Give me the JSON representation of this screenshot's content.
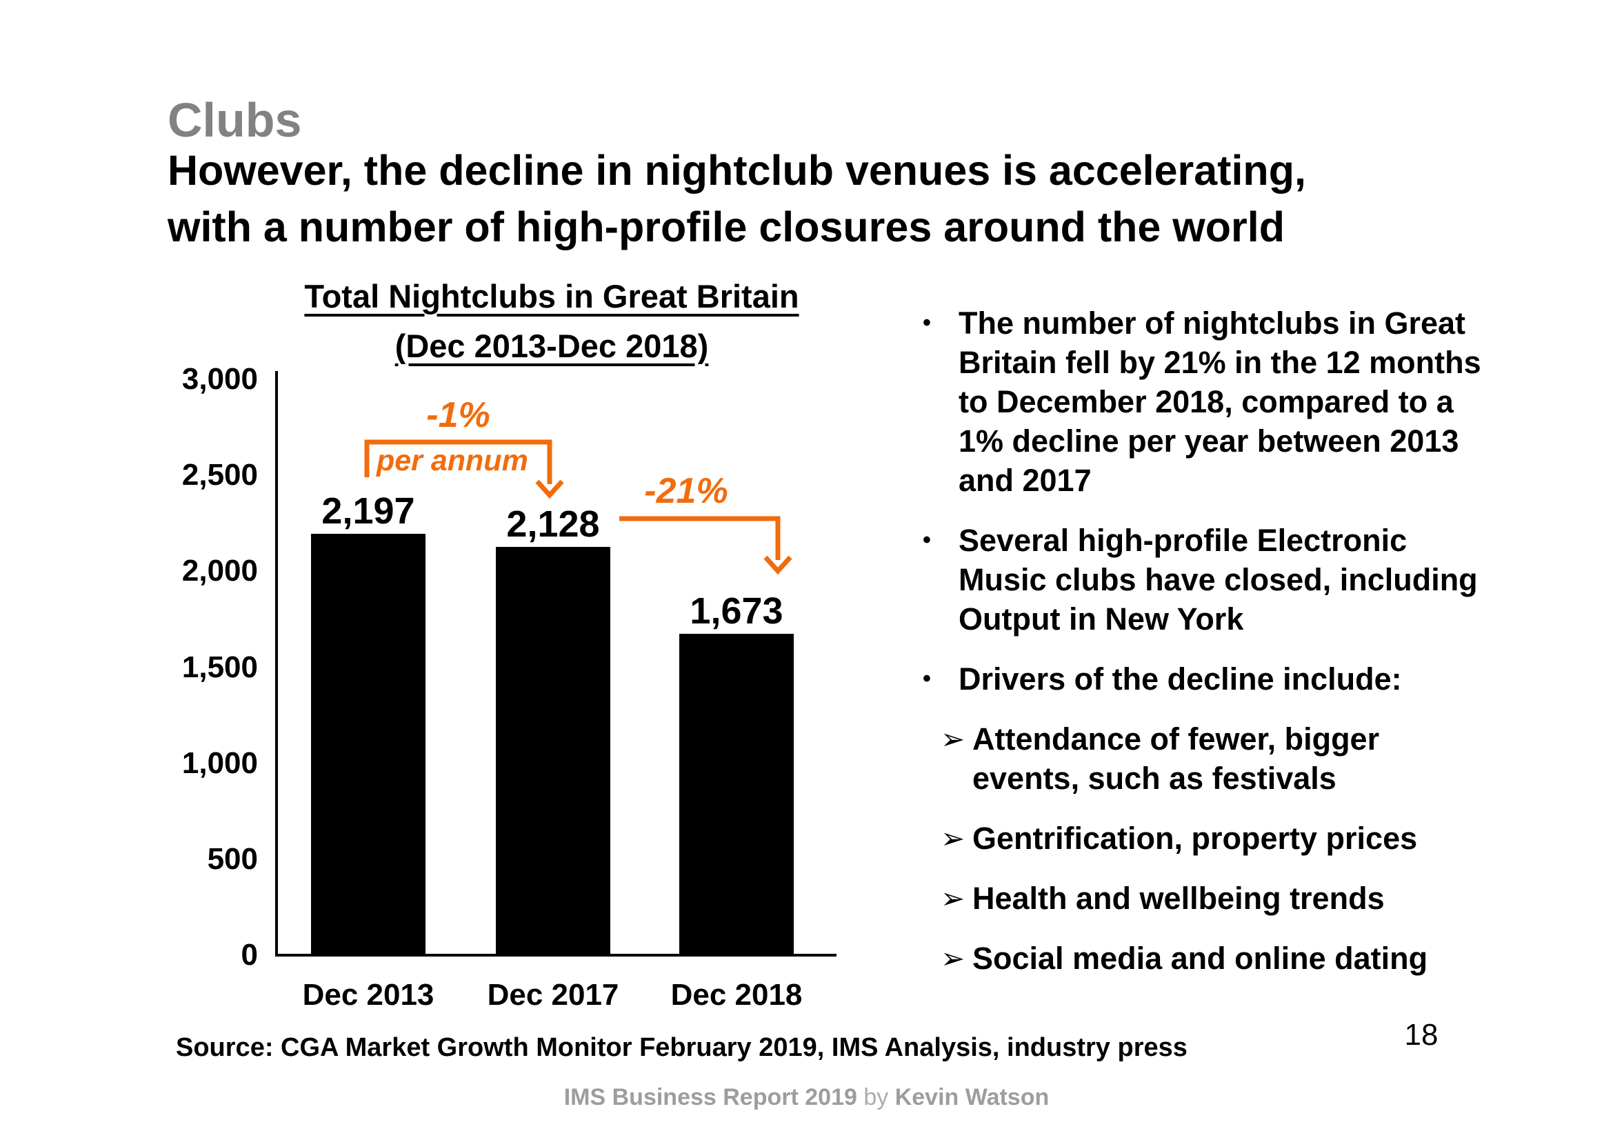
{
  "slide": {
    "kicker": "Clubs",
    "title_line1": "However, the decline in nightclub venues is accelerating,",
    "title_line2": "with a number of high-profile closures around the world",
    "page_number": "18",
    "source": "Source: CGA Market Growth Monitor February 2019, IMS Analysis, industry press",
    "footer": {
      "report": "IMS Business Report 2019",
      "by": " by ",
      "author": "Kevin Watson"
    }
  },
  "chart": {
    "title_line1": "Total Nightclubs in Great Britain",
    "title_line2": "(Dec 2013-Dec 2018)",
    "annotation_minus1": "-1%",
    "annotation_perannum": "per annum",
    "annotation_minus21": "-21%"
  },
  "chart_data": {
    "type": "bar",
    "title": "Total Nightclubs in Great Britain (Dec 2013-Dec 2018)",
    "categories": [
      "Dec 2013",
      "Dec 2017",
      "Dec 2018"
    ],
    "values": [
      2197,
      2128,
      1673
    ],
    "value_labels": [
      "2,197",
      "2,128",
      "1,673"
    ],
    "xlabel": "",
    "ylabel": "",
    "ylim": [
      0,
      3000
    ],
    "ytick_step": 500,
    "yticks": [
      3000,
      2500,
      2000,
      1500,
      1000,
      500,
      0
    ],
    "ytick_labels": [
      "3,000",
      "2,500",
      "2,000",
      "1,500",
      "1,000",
      "500",
      "0"
    ],
    "grid": false,
    "legend": false,
    "bar_color": "#000000",
    "annotations": [
      {
        "text": "-1% per annum",
        "from": "Dec 2013",
        "to": "Dec 2017",
        "color": "#F26C0D"
      },
      {
        "text": "-21%",
        "from": "Dec 2017",
        "to": "Dec 2018",
        "color": "#F26C0D"
      }
    ]
  },
  "bullets": {
    "items": [
      {
        "level": 1,
        "marker": "•",
        "text": "The number of nightclubs in Great Britain fell by 21% in the 12 months to December 2018, compared to a 1% decline per year between 2013 and 2017"
      },
      {
        "level": 1,
        "marker": "•",
        "text": "Several high-profile Electronic Music clubs have closed, including Output in New York"
      },
      {
        "level": 1,
        "marker": "•",
        "text": "Drivers of the decline include:"
      },
      {
        "level": 2,
        "marker": "➢",
        "text": "Attendance of fewer, bigger events, such as festivals"
      },
      {
        "level": 2,
        "marker": "➢",
        "text": "Gentrification, property prices"
      },
      {
        "level": 2,
        "marker": "➢",
        "text": "Health and wellbeing trends"
      },
      {
        "level": 2,
        "marker": "➢",
        "text": "Social media and online dating"
      }
    ]
  },
  "colors": {
    "accent_orange": "#F26C0D",
    "kicker_gray": "#828282",
    "footer_gray": "#9D9D9D",
    "bar_black": "#000000",
    "background": "#FFFFFF"
  }
}
